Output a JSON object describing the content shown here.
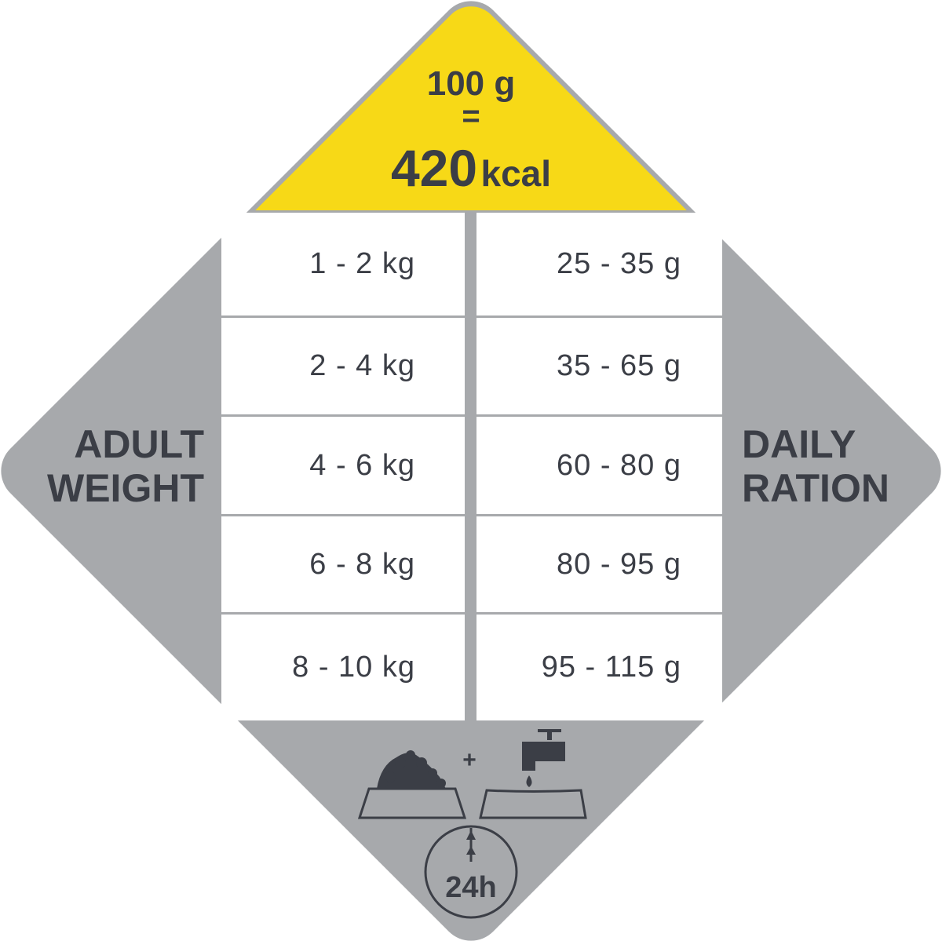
{
  "colors": {
    "yellow": "#f7d917",
    "gray": "#a7a9ac",
    "dark": "#3b3e46",
    "white": "#ffffff"
  },
  "header": {
    "amount": "100 g",
    "equals": "=",
    "energy_value": "420",
    "energy_unit": "kcal"
  },
  "left_label": {
    "line1": "ADULT",
    "line2": "WEIGHT"
  },
  "right_label": {
    "line1": "DAILY",
    "line2": "RATION"
  },
  "table": {
    "rows": [
      {
        "weight": "1 - 2 kg",
        "ration": "25 - 35 g"
      },
      {
        "weight": "2 - 4 kg",
        "ration": "35 - 65 g"
      },
      {
        "weight": "4 - 6 kg",
        "ration": "60 - 80 g"
      },
      {
        "weight": "6 - 8 kg",
        "ration": "80 - 95 g"
      },
      {
        "weight": "8 - 10 kg",
        "ration": "95 - 115 g"
      }
    ]
  },
  "footer": {
    "plus": "+",
    "duration": "24h",
    "icons": [
      "food-bowl-icon",
      "water-tap-icon",
      "water-bowl-icon",
      "clock-icon"
    ]
  }
}
